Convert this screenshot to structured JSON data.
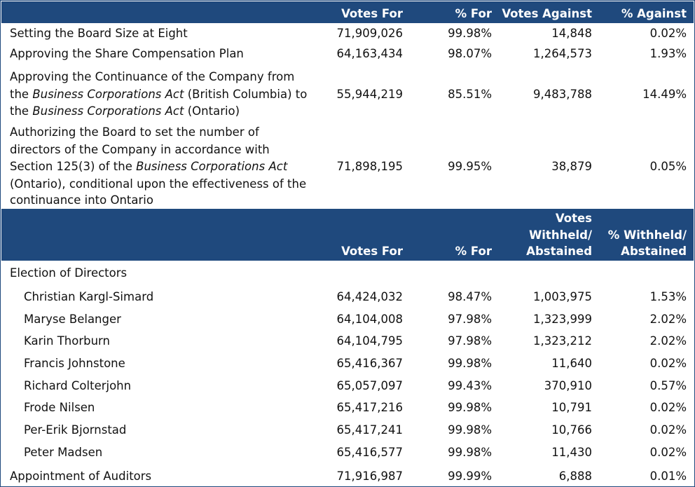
{
  "header1": {
    "votes_for": "Votes For",
    "pct_for": "% For",
    "votes_against": "Votes Against",
    "pct_against": "% Against"
  },
  "resolutions": [
    {
      "label": "Setting the Board Size at Eight",
      "votes_for": "71,909,026",
      "pct_for": "99.98%",
      "votes_against": "14,848",
      "pct_against": "0.02%"
    },
    {
      "label": "Approving the Share Compensation Plan",
      "votes_for": "64,163,434",
      "pct_for": "98.07%",
      "votes_against": "1,264,573",
      "pct_against": "1.93%"
    },
    {
      "label_l1": "Approving the Continuance of the Company from",
      "label_l2a": "the ",
      "label_l2b": "Business Corporations Act",
      "label_l2c": " (British Columbia) to",
      "label_l3a": "the ",
      "label_l3b": "Business Corporations Act",
      "label_l3c": " (Ontario)",
      "votes_for": "55,944,219",
      "pct_for": "85.51%",
      "votes_against": "9,483,788",
      "pct_against": "14.49%"
    },
    {
      "label_l1": "Authorizing the Board to set the number of",
      "label_l2": "directors of the Company in accordance with",
      "label_l3a": "Section 125(3) of the ",
      "label_l3b": "Business Corporations Act",
      "label_l4": "(Ontario), conditional upon the effectiveness of the",
      "label_l5": "continuance into Ontario",
      "votes_for": "71,898,195",
      "pct_for": "99.95%",
      "votes_against": "38,879",
      "pct_against": "0.05%"
    }
  ],
  "header2": {
    "votes_for": "Votes For",
    "pct_for": "% For",
    "withheld_l1": "Votes",
    "withheld_l2": "Withheld/",
    "withheld_l3": "Abstained",
    "pct_withheld_l1": "% Withheld/",
    "pct_withheld_l2": "Abstained"
  },
  "election": {
    "label": "Election of Directors",
    "directors": [
      {
        "name": "Christian Kargl-Simard",
        "votes_for": "64,424,032",
        "pct_for": "98.47%",
        "withheld": "1,003,975",
        "pct_withheld": "1.53%"
      },
      {
        "name": "Maryse Belanger",
        "votes_for": "64,104,008",
        "pct_for": "97.98%",
        "withheld": "1,323,999",
        "pct_withheld": "2.02%"
      },
      {
        "name": "Karin Thorburn",
        "votes_for": "64,104,795",
        "pct_for": "97.98%",
        "withheld": "1,323,212",
        "pct_withheld": "2.02%"
      },
      {
        "name": "Francis Johnstone",
        "votes_for": "65,416,367",
        "pct_for": "99.98%",
        "withheld": "11,640",
        "pct_withheld": "0.02%"
      },
      {
        "name": "Richard Colterjohn",
        "votes_for": "65,057,097",
        "pct_for": "99.43%",
        "withheld": "370,910",
        "pct_withheld": "0.57%"
      },
      {
        "name": "Frode Nilsen",
        "votes_for": "65,417,216",
        "pct_for": "99.98%",
        "withheld": "10,791",
        "pct_withheld": "0.02%"
      },
      {
        "name": "Per-Erik Bjornstad",
        "votes_for": "65,417,241",
        "pct_for": "99.98%",
        "withheld": "10,766",
        "pct_withheld": "0.02%"
      },
      {
        "name": "Peter Madsen",
        "votes_for": "65,416,577",
        "pct_for": "99.98%",
        "withheld": "11,430",
        "pct_withheld": "0.02%"
      }
    ]
  },
  "auditors": {
    "label": "Appointment of Auditors",
    "votes_for": "71,916,987",
    "pct_for": "99.99%",
    "withheld": "6,888",
    "pct_withheld": "0.01%"
  },
  "colors": {
    "header_bg": "#1f497d",
    "header_text": "#ffffff"
  }
}
